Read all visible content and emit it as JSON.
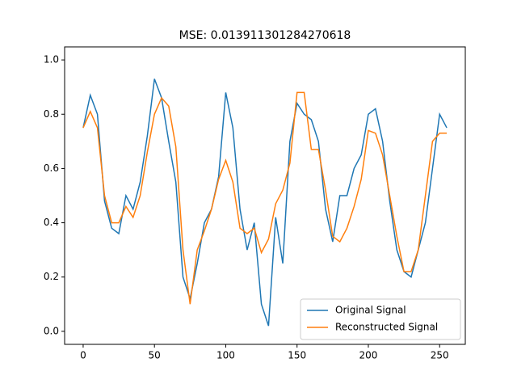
{
  "chart_data": {
    "type": "line",
    "title": "MSE: 0.013911301284270618",
    "x": [
      0,
      5,
      10,
      15,
      20,
      25,
      30,
      35,
      40,
      45,
      50,
      55,
      60,
      65,
      70,
      75,
      80,
      85,
      90,
      95,
      100,
      105,
      110,
      115,
      120,
      125,
      130,
      135,
      140,
      145,
      150,
      155,
      160,
      165,
      170,
      175,
      180,
      185,
      190,
      195,
      200,
      205,
      210,
      215,
      220,
      225,
      230,
      235,
      240,
      245,
      250,
      255
    ],
    "series": [
      {
        "name": "Original Signal",
        "color": "#1f77b4",
        "values": [
          0.75,
          0.87,
          0.8,
          0.48,
          0.38,
          0.36,
          0.5,
          0.45,
          0.55,
          0.72,
          0.93,
          0.86,
          0.7,
          0.55,
          0.2,
          0.12,
          0.25,
          0.4,
          0.45,
          0.57,
          0.88,
          0.75,
          0.45,
          0.3,
          0.4,
          0.1,
          0.02,
          0.42,
          0.25,
          0.7,
          0.84,
          0.8,
          0.78,
          0.7,
          0.45,
          0.33,
          0.5,
          0.5,
          0.6,
          0.65,
          0.8,
          0.82,
          0.7,
          0.48,
          0.3,
          0.22,
          0.2,
          0.3,
          0.4,
          0.6,
          0.8,
          0.75
        ]
      },
      {
        "name": "Reconstructed Signal",
        "color": "#ff7f0e",
        "values": [
          0.75,
          0.81,
          0.75,
          0.5,
          0.4,
          0.4,
          0.46,
          0.42,
          0.5,
          0.66,
          0.8,
          0.86,
          0.83,
          0.68,
          0.3,
          0.1,
          0.3,
          0.37,
          0.45,
          0.56,
          0.63,
          0.55,
          0.38,
          0.36,
          0.38,
          0.29,
          0.34,
          0.47,
          0.52,
          0.62,
          0.88,
          0.88,
          0.67,
          0.67,
          0.52,
          0.35,
          0.33,
          0.38,
          0.46,
          0.56,
          0.74,
          0.73,
          0.65,
          0.5,
          0.35,
          0.22,
          0.22,
          0.3,
          0.5,
          0.7,
          0.73,
          0.73
        ]
      }
    ],
    "xlim": [
      -13,
      268
    ],
    "ylim": [
      -0.048,
      1.048
    ],
    "xticks": [
      0,
      50,
      100,
      150,
      200,
      250
    ],
    "yticks": [
      {
        "value": 0,
        "label": "0.0"
      },
      0.2,
      0.4,
      0.6,
      0.8,
      {
        "value": 1,
        "label": "1.0"
      }
    ],
    "legend": "lower right"
  }
}
